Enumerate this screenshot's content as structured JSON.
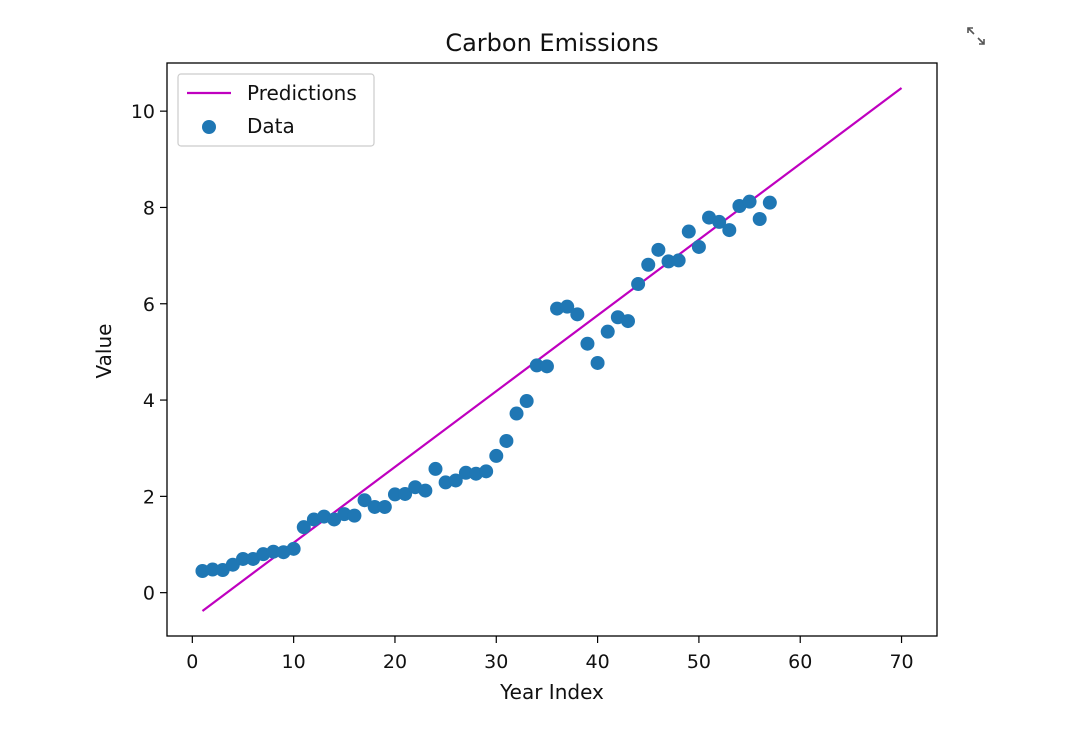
{
  "toolbar": {
    "expand_icon": "expand-arrows-icon"
  },
  "chart_data": {
    "type": "scatter",
    "title": "Carbon Emissions",
    "xlabel": "Year Index",
    "ylabel": "Value",
    "xlim": [
      -2.5,
      73.5
    ],
    "ylim": [
      -0.9,
      11.0
    ],
    "xticks": [
      0,
      10,
      20,
      30,
      40,
      50,
      60,
      70
    ],
    "yticks": [
      0,
      2,
      4,
      6,
      8,
      10
    ],
    "grid": false,
    "legend": {
      "position": "top-left",
      "entries": [
        {
          "label": "Predictions",
          "kind": "line",
          "color": "#bf00bf"
        },
        {
          "label": "Data",
          "kind": "marker",
          "color": "#1f77b4"
        }
      ]
    },
    "series": [
      {
        "name": "Data",
        "type": "scatter",
        "color": "#1f77b4",
        "x": [
          1,
          2,
          3,
          4,
          5,
          6,
          7,
          8,
          9,
          10,
          11,
          12,
          13,
          14,
          15,
          16,
          17,
          18,
          19,
          20,
          21,
          22,
          23,
          24,
          25,
          26,
          27,
          28,
          29,
          30,
          31,
          32,
          33,
          34,
          35,
          36,
          37,
          38,
          39,
          40,
          41,
          42,
          43,
          44,
          45,
          46,
          47,
          48,
          49,
          50,
          51,
          52,
          53,
          54,
          55,
          56,
          57
        ],
        "y": [
          0.45,
          0.48,
          0.47,
          0.58,
          0.7,
          0.7,
          0.8,
          0.85,
          0.84,
          0.91,
          1.36,
          1.52,
          1.58,
          1.52,
          1.63,
          1.6,
          1.92,
          1.78,
          1.78,
          2.04,
          2.05,
          2.19,
          2.12,
          2.57,
          2.29,
          2.33,
          2.49,
          2.47,
          2.52,
          2.84,
          3.15,
          3.72,
          3.98,
          4.72,
          4.7,
          5.9,
          5.94,
          5.78,
          5.17,
          4.77,
          5.42,
          5.72,
          5.64,
          6.41,
          6.81,
          7.12,
          6.88,
          6.9,
          7.5,
          7.18,
          7.79,
          7.7,
          7.53,
          8.03,
          8.12,
          7.76,
          8.1
        ]
      },
      {
        "name": "Predictions",
        "type": "line",
        "color": "#bf00bf",
        "x": [
          1,
          70
        ],
        "y": [
          -0.38,
          10.48
        ]
      }
    ]
  }
}
